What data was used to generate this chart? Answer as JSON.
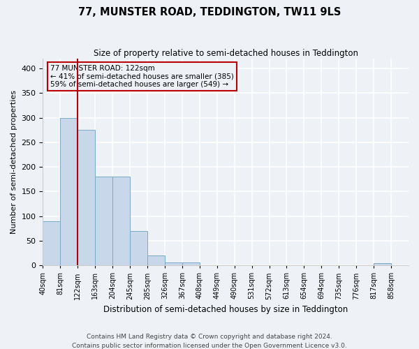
{
  "title": "77, MUNSTER ROAD, TEDDINGTON, TW11 9LS",
  "subtitle": "Size of property relative to semi-detached houses in Teddington",
  "xlabel": "Distribution of semi-detached houses by size in Teddington",
  "ylabel": "Number of semi-detached properties",
  "bin_edges": [
    0,
    1,
    2,
    3,
    4,
    5,
    6,
    7,
    8,
    9,
    10,
    11,
    12,
    13,
    14,
    15,
    16,
    17,
    18,
    19,
    20,
    21
  ],
  "bin_labels": [
    "40sqm",
    "81sqm",
    "122sqm",
    "163sqm",
    "204sqm",
    "245sqm",
    "285sqm",
    "326sqm",
    "367sqm",
    "408sqm",
    "449sqm",
    "490sqm",
    "531sqm",
    "572sqm",
    "613sqm",
    "654sqm",
    "694sqm",
    "735sqm",
    "776sqm",
    "817sqm",
    "858sqm"
  ],
  "bar_values": [
    90,
    300,
    275,
    180,
    180,
    70,
    20,
    6,
    6,
    0,
    0,
    0,
    0,
    0,
    0,
    0,
    0,
    0,
    0,
    5,
    0
  ],
  "bar_color": "#c8d8ea",
  "bar_edge_color": "#7aaac8",
  "property_bin_index": 2,
  "property_label": "77 MUNSTER ROAD: 122sqm",
  "annotation_smaller": "← 41% of semi-detached houses are smaller (385)",
  "annotation_larger": "59% of semi-detached houses are larger (549) →",
  "annotation_box_color": "#bb0000",
  "ylim": [
    0,
    420
  ],
  "yticks": [
    0,
    50,
    100,
    150,
    200,
    250,
    300,
    350,
    400
  ],
  "footer_line1": "Contains HM Land Registry data © Crown copyright and database right 2024.",
  "footer_line2": "Contains public sector information licensed under the Open Government Licence v3.0.",
  "background_color": "#eef2f7",
  "grid_color": "#ffffff",
  "spine_color": "#cccccc"
}
